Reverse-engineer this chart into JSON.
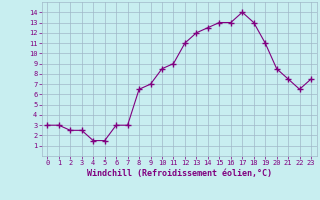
{
  "x": [
    0,
    1,
    2,
    3,
    4,
    5,
    6,
    7,
    8,
    9,
    10,
    11,
    12,
    13,
    14,
    15,
    16,
    17,
    18,
    19,
    20,
    21,
    22,
    23
  ],
  "y": [
    3,
    3,
    2.5,
    2.5,
    1.5,
    1.5,
    3,
    3,
    6.5,
    7,
    8.5,
    9,
    11,
    12,
    12.5,
    13,
    13,
    14,
    13,
    11,
    8.5,
    7.5,
    6.5,
    7.5
  ],
  "line_color": "#800080",
  "marker_size": 3,
  "bg_color": "#c8eef0",
  "grid_color": "#a0b8c8",
  "xlabel": "Windchill (Refroidissement éolien,°C)",
  "xlabel_color": "#800080",
  "tick_color": "#800080",
  "ylim": [
    0,
    15
  ],
  "xlim": [
    -0.5,
    23.5
  ],
  "yticks": [
    1,
    2,
    3,
    4,
    5,
    6,
    7,
    8,
    9,
    10,
    11,
    12,
    13,
    14
  ],
  "xticks": [
    0,
    1,
    2,
    3,
    4,
    5,
    6,
    7,
    8,
    9,
    10,
    11,
    12,
    13,
    14,
    15,
    16,
    17,
    18,
    19,
    20,
    21,
    22,
    23
  ]
}
